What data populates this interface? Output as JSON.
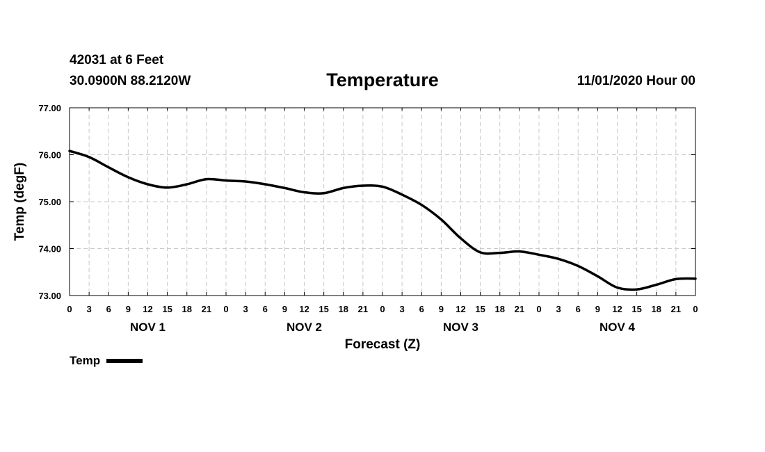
{
  "header": {
    "station": "42031 at 6 Feet",
    "coords": "30.0900N 88.2120W",
    "title": "Temperature",
    "datetime": "11/01/2020 Hour 00"
  },
  "legend": {
    "label": "Temp"
  },
  "chart_data": {
    "type": "line",
    "title": "Temperature",
    "xlabel": "Forecast (Z)",
    "ylabel": "Temp (degF)",
    "ylim": [
      73.0,
      77.0
    ],
    "yticks": [
      "73.00",
      "74.00",
      "75.00",
      "76.00",
      "77.00"
    ],
    "xlim_hours": [
      0,
      96
    ],
    "xtick_labels": [
      "0",
      "3",
      "6",
      "9",
      "12",
      "15",
      "18",
      "21",
      "0",
      "3",
      "6",
      "9",
      "12",
      "15",
      "18",
      "21",
      "0",
      "3",
      "6",
      "9",
      "12",
      "15",
      "18",
      "21",
      "0",
      "3",
      "6",
      "9",
      "12",
      "15",
      "18",
      "21",
      "0"
    ],
    "day_labels": [
      {
        "label": "NOV 1",
        "hour": 12
      },
      {
        "label": "NOV 2",
        "hour": 36
      },
      {
        "label": "NOV 3",
        "hour": 60
      },
      {
        "label": "NOV 4",
        "hour": 84
      }
    ],
    "grid": true,
    "legend_position": "bottom-left",
    "series": [
      {
        "name": "Temp",
        "color": "#000000",
        "x": [
          0,
          3,
          6,
          9,
          12,
          15,
          18,
          21,
          24,
          27,
          30,
          33,
          36,
          39,
          42,
          45,
          48,
          51,
          54,
          57,
          60,
          63,
          66,
          69,
          72,
          75,
          78,
          81,
          84,
          87,
          90,
          93,
          96
        ],
        "values": [
          76.08,
          75.95,
          75.73,
          75.52,
          75.37,
          75.3,
          75.37,
          75.48,
          75.45,
          75.43,
          75.37,
          75.29,
          75.2,
          75.18,
          75.29,
          75.34,
          75.32,
          75.15,
          74.93,
          74.62,
          74.22,
          73.92,
          73.91,
          73.94,
          73.87,
          73.78,
          73.63,
          73.41,
          73.17,
          73.13,
          73.23,
          73.35,
          73.36
        ]
      }
    ]
  }
}
